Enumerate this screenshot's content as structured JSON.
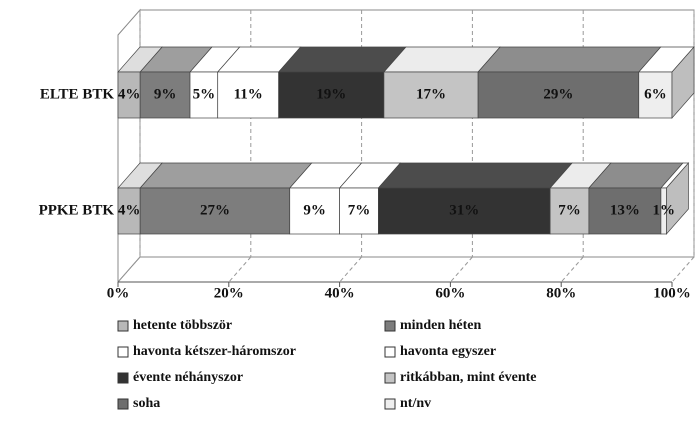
{
  "chart_data": {
    "type": "bar",
    "orientation": "horizontal",
    "stacked": true,
    "categories": [
      "ELTE BTK",
      "PPKE BTK"
    ],
    "series": [
      {
        "name": "hetente többször",
        "color": "#b8b8b8",
        "values": [
          4,
          4
        ],
        "value_labels": [
          "4%",
          "4%"
        ]
      },
      {
        "name": "minden héten",
        "color": "#7d7d7d",
        "values": [
          9,
          27
        ],
        "value_labels": [
          "9%",
          "27%"
        ]
      },
      {
        "name": "havonta kétszer-háromszor",
        "color": "#ffffff",
        "values": [
          5,
          9
        ],
        "value_labels": [
          "5%",
          "9%"
        ]
      },
      {
        "name": "havonta egyszer",
        "color": "#ffffff",
        "values": [
          11,
          7
        ],
        "value_labels": [
          "11%",
          "7%"
        ]
      },
      {
        "name": "évente néhányszor",
        "color": "#333333",
        "values": [
          19,
          31
        ],
        "value_labels": [
          "19%",
          "31%"
        ]
      },
      {
        "name": "ritkábban, mint évente",
        "color": "#c4c4c4",
        "values": [
          17,
          7
        ],
        "value_labels": [
          "17%",
          "7%"
        ]
      },
      {
        "name": "soha",
        "color": "#6e6e6e",
        "values": [
          29,
          13
        ],
        "value_labels": [
          "29%",
          "13%"
        ]
      },
      {
        "name": "nt/nv",
        "color": "#eeeeee",
        "values": [
          6,
          1
        ],
        "value_labels": [
          "6%",
          "1%"
        ]
      }
    ],
    "xlim": [
      0,
      100
    ],
    "xticks": [
      {
        "value": 0,
        "label": "0%"
      },
      {
        "value": 20,
        "label": "20%"
      },
      {
        "value": 40,
        "label": "40%"
      },
      {
        "value": 60,
        "label": "60%"
      },
      {
        "value": 80,
        "label": "80%"
      },
      {
        "value": 100,
        "label": "100%"
      }
    ],
    "grid": true
  }
}
